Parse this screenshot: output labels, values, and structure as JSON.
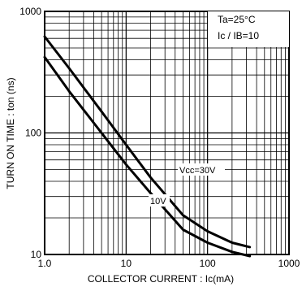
{
  "chart_data": {
    "type": "line",
    "xlabel": "COLLECTOR  CURRENT : Ic(mA)",
    "ylabel": "TURN  ON  TIME : ton (ns)",
    "x_scale": "log",
    "y_scale": "log",
    "xlim": [
      1,
      1000
    ],
    "ylim": [
      10,
      1000
    ],
    "x_ticks": [
      "1.0",
      "10",
      "100",
      "1000"
    ],
    "y_ticks": [
      "10",
      "100",
      "1000"
    ],
    "grid": true,
    "annotations": [
      "Ta=25°C",
      "Ic / IB=10"
    ],
    "series": [
      {
        "name": "Vcc=30V",
        "x": [
          1.0,
          2,
          5,
          10,
          20,
          50,
          100,
          200,
          330
        ],
        "y": [
          620,
          340,
          150,
          80,
          43,
          21,
          15.5,
          12.5,
          11.5
        ]
      },
      {
        "name": "10V",
        "x": [
          1.0,
          2,
          5,
          10,
          20,
          50,
          100,
          200,
          330
        ],
        "y": [
          420,
          220,
          100,
          55,
          32,
          16,
          12.5,
          10.5,
          9.7
        ]
      }
    ],
    "colors": {
      "line": "#000000",
      "grid": "#000000",
      "background": "#ffffff"
    }
  }
}
